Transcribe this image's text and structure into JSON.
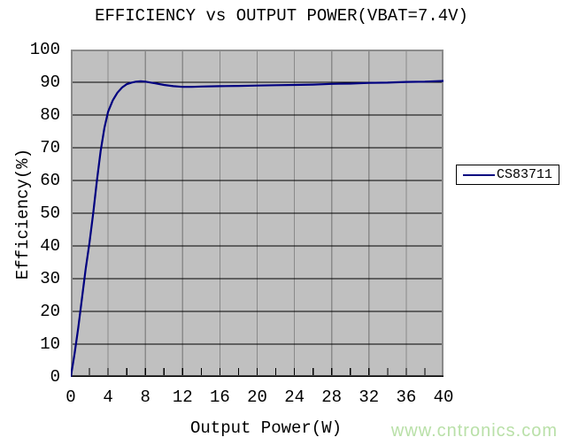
{
  "page": {
    "watermark": "www.cntronics.com"
  },
  "chart_data": {
    "type": "line",
    "title": "EFFICIENCY vs OUTPUT POWER(VBAT=7.4V)",
    "xlabel": "Output Power(W)",
    "ylabel": "Efficiency(%)",
    "xlim": [
      0,
      40
    ],
    "ylim": [
      0,
      100
    ],
    "x_major_ticks": [
      0,
      4,
      8,
      12,
      16,
      20,
      24,
      28,
      32,
      36,
      40
    ],
    "x_minor_step": 2,
    "y_ticks": [
      0,
      10,
      20,
      30,
      40,
      50,
      60,
      70,
      80,
      90,
      100
    ],
    "grid": {
      "horizontal_every": 10,
      "vertical_every": 4,
      "grid_on": true
    },
    "legend": {
      "position": "right",
      "entries": [
        {
          "label": "CS83711",
          "color": "#000080"
        }
      ]
    },
    "series": [
      {
        "name": "CS83711",
        "color": "#000080",
        "points": [
          [
            0,
            0
          ],
          [
            0.4,
            7
          ],
          [
            0.8,
            15
          ],
          [
            1.2,
            24
          ],
          [
            1.6,
            33
          ],
          [
            2.0,
            41
          ],
          [
            2.4,
            50
          ],
          [
            2.8,
            60
          ],
          [
            3.2,
            69
          ],
          [
            3.6,
            76
          ],
          [
            4.0,
            81
          ],
          [
            4.5,
            84.5
          ],
          [
            5.0,
            86.8
          ],
          [
            5.5,
            88.4
          ],
          [
            6.0,
            89.4
          ],
          [
            6.5,
            89.9
          ],
          [
            7.0,
            90.2
          ],
          [
            7.5,
            90.3
          ],
          [
            8.0,
            90.2
          ],
          [
            9.0,
            89.7
          ],
          [
            10.0,
            89.2
          ],
          [
            11.0,
            88.8
          ],
          [
            12.0,
            88.6
          ],
          [
            13.0,
            88.6
          ],
          [
            14.0,
            88.7
          ],
          [
            16.0,
            88.8
          ],
          [
            18.0,
            88.9
          ],
          [
            20.0,
            89.0
          ],
          [
            22.0,
            89.1
          ],
          [
            24.0,
            89.2
          ],
          [
            26.0,
            89.3
          ],
          [
            28.0,
            89.5
          ],
          [
            30.0,
            89.6
          ],
          [
            32.0,
            89.8
          ],
          [
            34.0,
            89.9
          ],
          [
            36.0,
            90.1
          ],
          [
            38.0,
            90.2
          ],
          [
            40.0,
            90.4
          ]
        ]
      }
    ],
    "colors": {
      "plot_bg": "#c0c0c0",
      "h_grid": "#000000",
      "v_grid": "#8a8a8a",
      "frame": "#8a8a8a",
      "axis": "#000000",
      "line": "#000080",
      "watermark": "#b9e0a8"
    }
  }
}
